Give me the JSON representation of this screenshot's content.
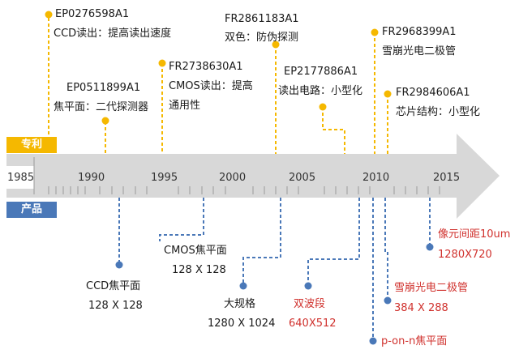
{
  "tags": {
    "patent": "专利",
    "product": "产品"
  },
  "colors": {
    "patent": "#f5b800",
    "product": "#4a78b8",
    "axis": "#d8d8d8",
    "red": "#d0312d"
  },
  "timeline": {
    "start_label": "1985",
    "ticks": [
      "1990",
      "1995",
      "2000",
      "2005",
      "2010",
      "2015"
    ]
  },
  "patents": [
    {
      "code": "EP0276598A1",
      "desc": "CCD读出：提高读出速度"
    },
    {
      "code": "EP0511899A1",
      "desc": "焦平面：二代探测器"
    },
    {
      "code": "FR2738630A1",
      "desc1": "CMOS读出：提高",
      "desc2": "通用性"
    },
    {
      "code": "FR2861183A1",
      "desc": "双色：防伪探测"
    },
    {
      "code": "EP2177886A1",
      "desc": "读出电路：小型化"
    },
    {
      "code": "FR2968399A1",
      "desc": "雪崩光电二极管"
    },
    {
      "code": "FR2984606A1",
      "desc": "芯片结构：小型化"
    }
  ],
  "products": [
    {
      "name": "CCD焦平面",
      "spec": "128 X 128"
    },
    {
      "name": "CMOS焦平面",
      "spec": "128 X 128"
    },
    {
      "name": "大规格",
      "spec": "1280 X 1024"
    },
    {
      "name": "双波段",
      "spec": "640X512"
    },
    {
      "name": "p-on-n焦平面"
    },
    {
      "name": "雪崩光电二极管",
      "spec": "384 X 288"
    },
    {
      "name": "像元间距10um",
      "spec": "1280X720"
    }
  ]
}
